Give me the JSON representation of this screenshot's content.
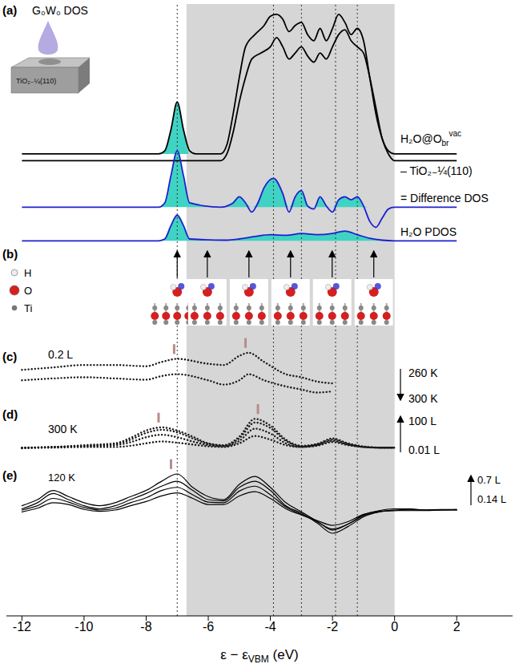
{
  "chart_data": {
    "type": "line",
    "xlim": [
      -12.5,
      3.8
    ],
    "xticks": [
      -12,
      -10,
      -8,
      -6,
      -4,
      -2,
      0,
      2
    ],
    "ylim": [
      0,
      100
    ],
    "tick_labels": "x",
    "x_label": {
      "text": "ε − ε",
      "sub": "VBM",
      "suffix": " (eV)"
    },
    "shaded_region": [
      -6.7,
      0
    ],
    "shade_color": "#d6d6d6",
    "vlines": [
      -7.0,
      -3.9,
      -3.0,
      -1.9,
      -1.2
    ],
    "mark_color": "#b88c8a",
    "panels": [
      {
        "letter": "(a)",
        "title": "G₀W₀ DOS",
        "inset_label": "TiO₂₋¼(110)",
        "series": [
          {
            "name": "H₂O@O",
            "name_sub": "br",
            "name_sup": "vac",
            "color": "#000000",
            "fill_color": "#3fd3c3",
            "baseline": 75.5,
            "x": [
              -12,
              -8,
              -7.6,
              -7.4,
              -7.2,
              -7.0,
              -6.8,
              -6.6,
              -6.4,
              -5.6,
              -5.4,
              -5.2,
              -5.0,
              -4.8,
              -4.5,
              -4.2,
              -4.0,
              -3.8,
              -3.6,
              -3.4,
              -3.2,
              -3.0,
              -2.8,
              -2.6,
              -2.4,
              -2.2,
              -2.0,
              -1.8,
              -1.6,
              -1.4,
              -1.2,
              -1.0,
              -0.8,
              -0.6,
              -0.4,
              -0.2,
              0,
              2
            ],
            "values": [
              75.5,
              75.5,
              75.5,
              76,
              79.5,
              84,
              79.5,
              76,
              75.5,
              75.5,
              77,
              82,
              88,
              93,
              95,
              96.5,
              98,
              98.3,
              97.5,
              95.5,
              96.5,
              97,
              95,
              94,
              96,
              94,
              96,
              98.3,
              97,
              95,
              96,
              94,
              88,
              82,
              78,
              76,
              75.5,
              75.5
            ]
          },
          {
            "name": "– TiO₂₋¼(110)",
            "color": "#000000",
            "baseline": 74.4,
            "x": [
              -12,
              -5.6,
              -5.4,
              -5.2,
              -5.0,
              -4.8,
              -4.6,
              -4.3,
              -4.0,
              -3.8,
              -3.6,
              -3.4,
              -3.2,
              -3.0,
              -2.8,
              -2.6,
              -2.4,
              -2.2,
              -2.0,
              -1.8,
              -1.6,
              -1.4,
              -1.2,
              -1.0,
              -0.8,
              -0.6,
              -0.4,
              -0.2,
              0,
              2
            ],
            "values": [
              74.4,
              74.4,
              75.5,
              79,
              84,
              88,
              91,
              92,
              93,
              94.5,
              93,
              91,
              92,
              93,
              91.5,
              90.5,
              92,
              91,
              93,
              95,
              95.8,
              94,
              93,
              92,
              88,
              83,
              78,
              75.5,
              74.4,
              74.4
            ]
          },
          {
            "name": "= Difference DOS",
            "color": "#1f1fd0",
            "fill_color": "#3fd3c3",
            "baseline": 66.8,
            "x": [
              -12,
              -7.6,
              -7.4,
              -7.2,
              -7.0,
              -6.8,
              -6.6,
              -5.6,
              -5.2,
              -5.0,
              -4.8,
              -4.6,
              -4.4,
              -4.2,
              -3.9,
              -3.6,
              -3.4,
              -3.2,
              -3.0,
              -2.8,
              -2.6,
              -2.4,
              -2.2,
              -2.0,
              -1.8,
              -1.6,
              -1.4,
              -1.2,
              -1.0,
              -0.8,
              -0.6,
              -0.4,
              -0.2,
              0,
              2
            ],
            "values": [
              66.8,
              66.8,
              67.5,
              72,
              76,
              72,
              67.5,
              66.8,
              67.5,
              68.5,
              67.5,
              66,
              67.5,
              70,
              71.5,
              69,
              66,
              68.5,
              69.5,
              67,
              66.5,
              68.5,
              67,
              66,
              68,
              68.5,
              68,
              68.5,
              67,
              64.5,
              63.5,
              65,
              66.5,
              66.8,
              66.8
            ]
          },
          {
            "name": "H₂O PDOS",
            "color": "#1f1fd0",
            "fill_color": "#3fd3c3",
            "baseline": 61.3,
            "x": [
              -12,
              -7.6,
              -7.4,
              -7.2,
              -7.0,
              -6.8,
              -6.6,
              -5.4,
              -5.0,
              -4.5,
              -4.0,
              -3.5,
              -3.0,
              -2.5,
              -2.0,
              -1.6,
              -1.2,
              -0.8,
              -0.4,
              0,
              2
            ],
            "values": [
              61.3,
              61.3,
              61.6,
              63.8,
              65.5,
              63.8,
              61.6,
              61.4,
              61.6,
              62,
              62.3,
              62.2,
              62.5,
              62.3,
              62.5,
              62.9,
              62.3,
              61.7,
              61.4,
              61.3,
              61.3
            ]
          }
        ]
      },
      {
        "letter": "(b)",
        "atom_labels": [
          "H",
          "O",
          "Ti"
        ]
      },
      {
        "letter": "(c)",
        "annotations": [
          "0.2 L",
          "260 K",
          "300 K"
        ],
        "marks": [
          -7.1,
          -4.8
        ],
        "x": [
          -12,
          -11,
          -10,
          -9,
          -8,
          -7.5,
          -7,
          -6,
          -5.5,
          -5,
          -4.7,
          -4.2,
          -3.5,
          -3,
          -2.5,
          -2
        ],
        "series": [
          {
            "color": "#1a1a1a",
            "line_style": "dotted",
            "values": [
              40.2,
              40.6,
              41,
              41,
              40.8,
              41.5,
              42,
              41.2,
              41,
              42.5,
              43,
              41.5,
              39.5,
              39,
              38.3,
              38
            ]
          },
          {
            "color": "#1a1a1a",
            "line_style": "dotted",
            "values": [
              38.5,
              38.8,
              39,
              38.8,
              38.6,
              39.2,
              39.5,
              38.5,
              37.8,
              38.5,
              39.5,
              38.5,
              37.5,
              37,
              36.5,
              36.7
            ]
          }
        ]
      },
      {
        "letter": "(d)",
        "annotations": [
          "300 K",
          "100 L",
          "0.01 L"
        ],
        "marks": [
          -7.6,
          -4.4
        ],
        "x": [
          -12,
          -11,
          -10,
          -9,
          -8.5,
          -8,
          -7.5,
          -7,
          -6.5,
          -6,
          -5.5,
          -5,
          -4.5,
          -4,
          -3.5,
          -3,
          -2.5,
          -2,
          -1.5,
          -1,
          -0.5,
          0
        ],
        "series": [
          {
            "color": "#1a1a1a",
            "line_style": "dotted",
            "values": [
              27.5,
              27.5,
              27.6,
              27.6,
              27.8,
              28.2,
              28.5,
              28.3,
              28,
              27.7,
              27.6,
              28.2,
              29.4,
              28.8,
              27.9,
              27.6,
              27.8,
              28.4,
              27.9,
              27.6,
              27.5,
              27.5
            ]
          },
          {
            "color": "#1a1a1a",
            "line_style": "dotted",
            "values": [
              27.5,
              27.6,
              27.7,
              27.9,
              28.4,
              29.2,
              29.6,
              29.2,
              28.5,
              27.9,
              27.7,
              28.6,
              30.6,
              29.8,
              28.2,
              27.6,
              27.9,
              28.6,
              28.0,
              27.6,
              27.5,
              27.5
            ]
          },
          {
            "color": "#1a1a1a",
            "line_style": "dotted",
            "values": [
              27.4,
              27.6,
              27.8,
              28.1,
              28.8,
              29.9,
              30.4,
              30,
              29,
              28.1,
              27.8,
              29,
              31.6,
              30.7,
              28.6,
              27.7,
              28,
              28.8,
              28.1,
              27.6,
              27.5,
              27.5
            ]
          },
          {
            "color": "#1a1a1a",
            "line_style": "dotted",
            "values": [
              27.4,
              27.6,
              27.9,
              28.2,
              29.1,
              30.3,
              30.8,
              30.3,
              29.3,
              28.2,
              27.9,
              29.3,
              32.2,
              31.1,
              28.8,
              27.8,
              28.1,
              29,
              28.2,
              27.7,
              27.5,
              27.5
            ]
          }
        ]
      },
      {
        "letter": "(e)",
        "annotations": [
          "120 K",
          "0.7 L",
          "0.14 L"
        ],
        "marks": [
          -7.2
        ],
        "x": [
          -12,
          -11.5,
          -11,
          -10.5,
          -10,
          -9.5,
          -9,
          -8.5,
          -8,
          -7.5,
          -7,
          -6.5,
          -6,
          -5.5,
          -5,
          -4.5,
          -4,
          -3.5,
          -3,
          -2.5,
          -2,
          -1.5,
          -1,
          -0.5,
          0,
          0.5,
          1,
          1.5,
          2
        ],
        "series": [
          {
            "color": "#000000",
            "line_style": "solid",
            "values": [
              18,
              19,
              20.5,
              19.5,
              18.5,
              18,
              18.5,
              19.5,
              20.5,
              22,
              23.2,
              21,
              19.5,
              19,
              21.5,
              22.8,
              21,
              18.5,
              17,
              15.5,
              14,
              15,
              16.5,
              17.2,
              17.5,
              17.5,
              17.3,
              17.4,
              17.4
            ]
          },
          {
            "color": "#000000",
            "line_style": "solid",
            "values": [
              17.5,
              18.5,
              20,
              19,
              18,
              17.5,
              18,
              19,
              20,
              21.2,
              22,
              20.5,
              19,
              18.8,
              21,
              22,
              20.5,
              18,
              16.8,
              15.2,
              13.5,
              14.6,
              16.2,
              17,
              17.3,
              17.4,
              17.3,
              17.3,
              17.4
            ]
          },
          {
            "color": "#000000",
            "line_style": "solid",
            "values": [
              17.3,
              18,
              19.2,
              18.6,
              17.7,
              17.3,
              17.6,
              18.5,
              19.3,
              20.5,
              21,
              19.8,
              18.6,
              18.5,
              20.4,
              21.2,
              19.8,
              17.8,
              16.6,
              15.4,
              14.2,
              15,
              16.4,
              17,
              17.2,
              17.3,
              17.3,
              17.3,
              17.3
            ]
          },
          {
            "color": "#000000",
            "line_style": "solid",
            "values": [
              17,
              17.6,
              18.5,
              18.2,
              17.4,
              17.1,
              17.3,
              18,
              18.7,
              19.6,
              20.1,
              19.2,
              18.2,
              18.2,
              19.6,
              20.3,
              19.2,
              17.5,
              16.5,
              15.6,
              14.8,
              15.4,
              16.6,
              17.1,
              17.2,
              17.2,
              17.2,
              17.3,
              17.3
            ]
          }
        ]
      }
    ]
  }
}
